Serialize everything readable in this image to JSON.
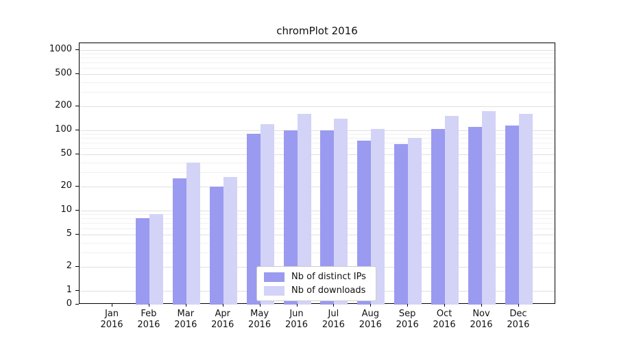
{
  "chart_data": {
    "type": "bar",
    "title": "chromPlot 2016",
    "categories": [
      "Jan 2016",
      "Feb 2016",
      "Mar 2016",
      "Apr 2016",
      "May 2016",
      "Jun 2016",
      "Jul 2016",
      "Aug 2016",
      "Sep 2016",
      "Oct 2016",
      "Nov 2016",
      "Dec 2016"
    ],
    "series": [
      {
        "name": "Nb of distinct IPs",
        "color": "#9a9af0",
        "values": [
          0,
          8,
          25,
          20,
          90,
          100,
          100,
          75,
          68,
          105,
          110,
          115
        ]
      },
      {
        "name": "Nb of downloads",
        "color": "#d3d3f8",
        "values": [
          0,
          9,
          40,
          26,
          120,
          160,
          140,
          105,
          80,
          150,
          175,
          160
        ]
      }
    ],
    "yaxis": {
      "scale": "symlog",
      "ticks": [
        0,
        1,
        2,
        5,
        10,
        20,
        50,
        100,
        200,
        500,
        1000
      ],
      "range": [
        0,
        1000
      ]
    },
    "xlabel": "",
    "ylabel": "",
    "grid": true,
    "legend_position": "lower center"
  }
}
